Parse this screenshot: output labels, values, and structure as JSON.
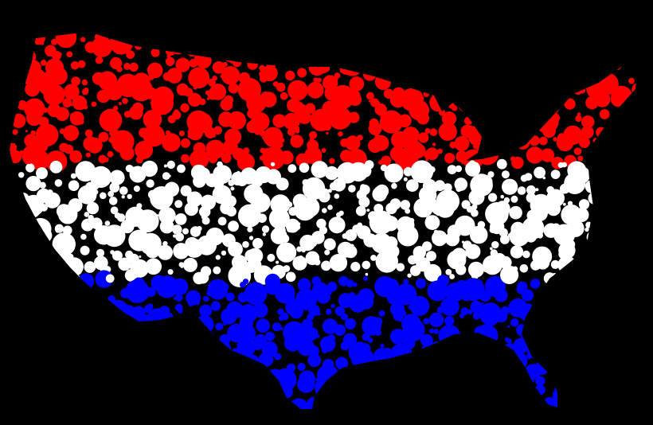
{
  "image": {
    "subject": "us-map-flag-circles-icon",
    "background_color": "#000000",
    "bands": [
      {
        "name": "top-band",
        "color": "#FF0000"
      },
      {
        "name": "middle-band",
        "color": "#FFFFFF"
      },
      {
        "name": "bottom-band",
        "color": "#0000FF"
      }
    ]
  }
}
